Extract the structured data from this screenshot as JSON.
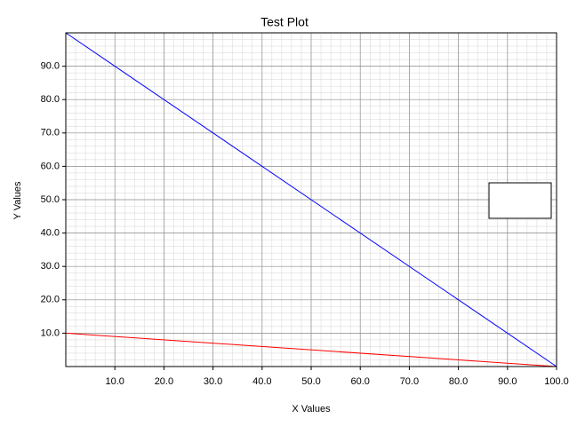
{
  "chart_data": {
    "type": "line",
    "title": "Test Plot",
    "x_label": "X Values",
    "y_label": "Y Values",
    "x": [
      0,
      100
    ],
    "series": [
      {
        "color": "#0000ff",
        "values": [
          100,
          0
        ]
      },
      {
        "color": "#ff0000",
        "values": [
          10,
          0
        ]
      }
    ],
    "xlim": [
      0,
      100
    ],
    "ylim": [
      0,
      100
    ],
    "xticks": [
      {
        "value": 10,
        "label": "10.0"
      },
      {
        "value": 20,
        "label": "20.0"
      },
      {
        "value": 30,
        "label": "30.0"
      },
      {
        "value": 40,
        "label": "40.0"
      },
      {
        "value": 50,
        "label": "50.0"
      },
      {
        "value": 60,
        "label": "60.0"
      },
      {
        "value": 70,
        "label": "70.0"
      },
      {
        "value": 80,
        "label": "80.0"
      },
      {
        "value": 90,
        "label": "90.0"
      },
      {
        "value": 100,
        "label": "100.0"
      }
    ],
    "yticks": [
      {
        "value": 10,
        "label": "10.0"
      },
      {
        "value": 20,
        "label": "20.0"
      },
      {
        "value": 30,
        "label": "30.0"
      },
      {
        "value": 40,
        "label": "40.0"
      },
      {
        "value": 50,
        "label": "50.0"
      },
      {
        "value": 60,
        "label": "60.0"
      },
      {
        "value": 70,
        "label": "70.0"
      },
      {
        "value": 80,
        "label": "80.0"
      },
      {
        "value": 90,
        "label": "90.0"
      }
    ],
    "grid": true,
    "legend": "right"
  }
}
